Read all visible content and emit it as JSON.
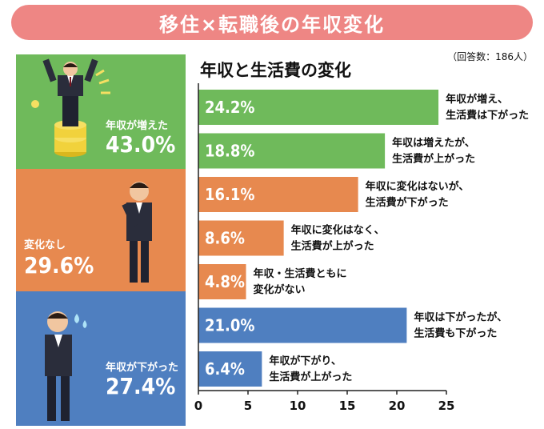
{
  "header": {
    "title": "移住×転職後の年収変化"
  },
  "respondents": "（回答数：186人）",
  "panels": {
    "up": {
      "label": "年収が増えた",
      "value": "43.0%"
    },
    "same": {
      "label": "変化なし",
      "value": "29.6%"
    },
    "down": {
      "label": "年収が下がった",
      "value": "27.4%"
    }
  },
  "colors": {
    "green": "#6fba5b",
    "orange": "#e7894f",
    "blue": "#4f7fc0",
    "banner": "#ee8684",
    "axis": "#222222"
  },
  "chart_data": {
    "type": "bar",
    "orientation": "horizontal",
    "title": "年収と生活費の変化",
    "xlim": [
      0,
      25
    ],
    "xticks": [
      0,
      5,
      10,
      15,
      20,
      25
    ],
    "categories": [
      [
        "年収が増え、",
        "生活費は下がった"
      ],
      [
        "年収は増えたが、",
        "生活費が上がった"
      ],
      [
        "年収に変化はないが、",
        "生活費が下がった"
      ],
      [
        "年収に変化はなく、",
        "生活費が上がった"
      ],
      [
        "年収・生活費ともに",
        "変化がない"
      ],
      [
        "年収は下がったが、",
        "生活費も下がった"
      ],
      [
        "年収が下がり、",
        "生活費が上がった"
      ]
    ],
    "values": [
      24.2,
      18.8,
      16.1,
      8.6,
      4.8,
      21.0,
      6.4
    ],
    "value_labels": [
      "24.2%",
      "18.8%",
      "16.1%",
      "8.6%",
      "4.8%",
      "21.0%",
      "6.4%"
    ],
    "groups": [
      "green",
      "green",
      "orange",
      "orange",
      "orange",
      "blue",
      "blue"
    ]
  }
}
